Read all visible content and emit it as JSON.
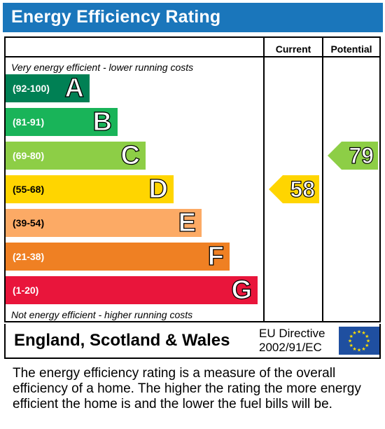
{
  "title": "Energy Efficiency Rating",
  "columns": {
    "current": "Current",
    "potential": "Potential"
  },
  "top_note": "Very energy efficient - lower running costs",
  "bottom_note": "Not energy efficient - higher running costs",
  "chart_data": {
    "type": "bar",
    "categories": [
      "A",
      "B",
      "C",
      "D",
      "E",
      "F",
      "G"
    ],
    "bands": [
      {
        "letter": "A",
        "range": "(92-100)",
        "color": "#008054"
      },
      {
        "letter": "B",
        "range": "(81-91)",
        "color": "#19b459"
      },
      {
        "letter": "C",
        "range": "(69-80)",
        "color": "#8dce46"
      },
      {
        "letter": "D",
        "range": "(55-68)",
        "color": "#ffd500"
      },
      {
        "letter": "E",
        "range": "(39-54)",
        "color": "#fcaa65"
      },
      {
        "letter": "F",
        "range": "(21-38)",
        "color": "#ef8023"
      },
      {
        "letter": "G",
        "range": "(1-20)",
        "color": "#e9153b"
      }
    ],
    "current": {
      "value": "58",
      "band": "D",
      "color": "#ffd500"
    },
    "potential": {
      "value": "79",
      "band": "C",
      "color": "#8dce46"
    }
  },
  "footer": {
    "region": "England, Scotland & Wales",
    "directive_line1": "EU Directive",
    "directive_line2": "2002/91/EC",
    "flag_icon": "eu-flag-icon"
  },
  "description": "The energy efficiency rating is a measure of the overall efficiency of a home. The higher the rating the more energy efficient the home is and the lower the fuel bills will be."
}
